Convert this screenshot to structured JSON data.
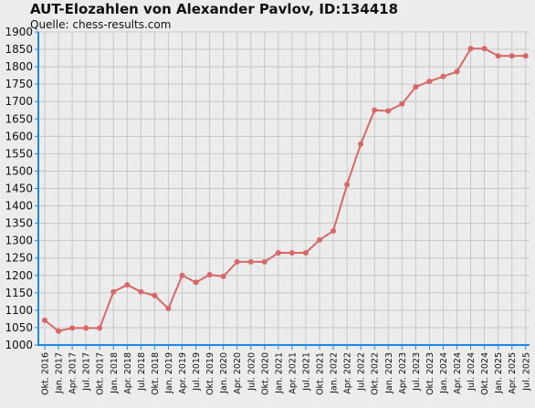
{
  "chart_data": {
    "type": "line",
    "title": "AUT-Elozahlen von Alexander Pavlov, ID:134418",
    "subtitle": "Quelle: chess-results.com",
    "xlabel": "",
    "ylabel": "",
    "ylim": [
      1000,
      1900
    ],
    "y_ticks": [
      1000,
      1050,
      1100,
      1150,
      1200,
      1250,
      1300,
      1350,
      1400,
      1450,
      1500,
      1550,
      1600,
      1650,
      1700,
      1750,
      1800,
      1850,
      1900
    ],
    "categories": [
      "Okt. 2016",
      "Jan. 2017",
      "Apr. 2017",
      "Jul. 2017",
      "Okt. 2017",
      "Jan. 2018",
      "Apr. 2018",
      "Jul. 2018",
      "Okt. 2018",
      "Jan. 2019",
      "Apr. 2019",
      "Jul. 2019",
      "Okt. 2019",
      "Jan. 2020",
      "Apr. 2020",
      "Jul. 2020",
      "Okt. 2020",
      "Jan. 2021",
      "Apr. 2021",
      "Jul. 2021",
      "Okt. 2021",
      "Jan. 2022",
      "Apr. 2022",
      "Jul. 2022",
      "Okt. 2022",
      "Jan. 2023",
      "Apr. 2023",
      "Jul. 2023",
      "Okt. 2023",
      "Jan. 2024",
      "Apr. 2024",
      "Jul. 2024",
      "Okt. 2024",
      "Jan. 2025",
      "Apr. 2025",
      "Jul. 2025"
    ],
    "series": [
      {
        "values": [
          1071,
          1040,
          1049,
          1049,
          1049,
          1153,
          1173,
          1153,
          1142,
          1105,
          1200,
          1180,
          1202,
          1197,
          1239,
          1239,
          1239,
          1265,
          1265,
          1265,
          1302,
          1328,
          1461,
          1578,
          1675,
          1673,
          1693,
          1742,
          1758,
          1772,
          1786,
          1852,
          1852,
          1831,
          1831,
          1831
        ],
        "color": "#d86868"
      }
    ],
    "grid": true,
    "legend": "none",
    "axis_color": "#1e88e5",
    "grid_color": "#c8c8c8",
    "background": "#ececec"
  }
}
